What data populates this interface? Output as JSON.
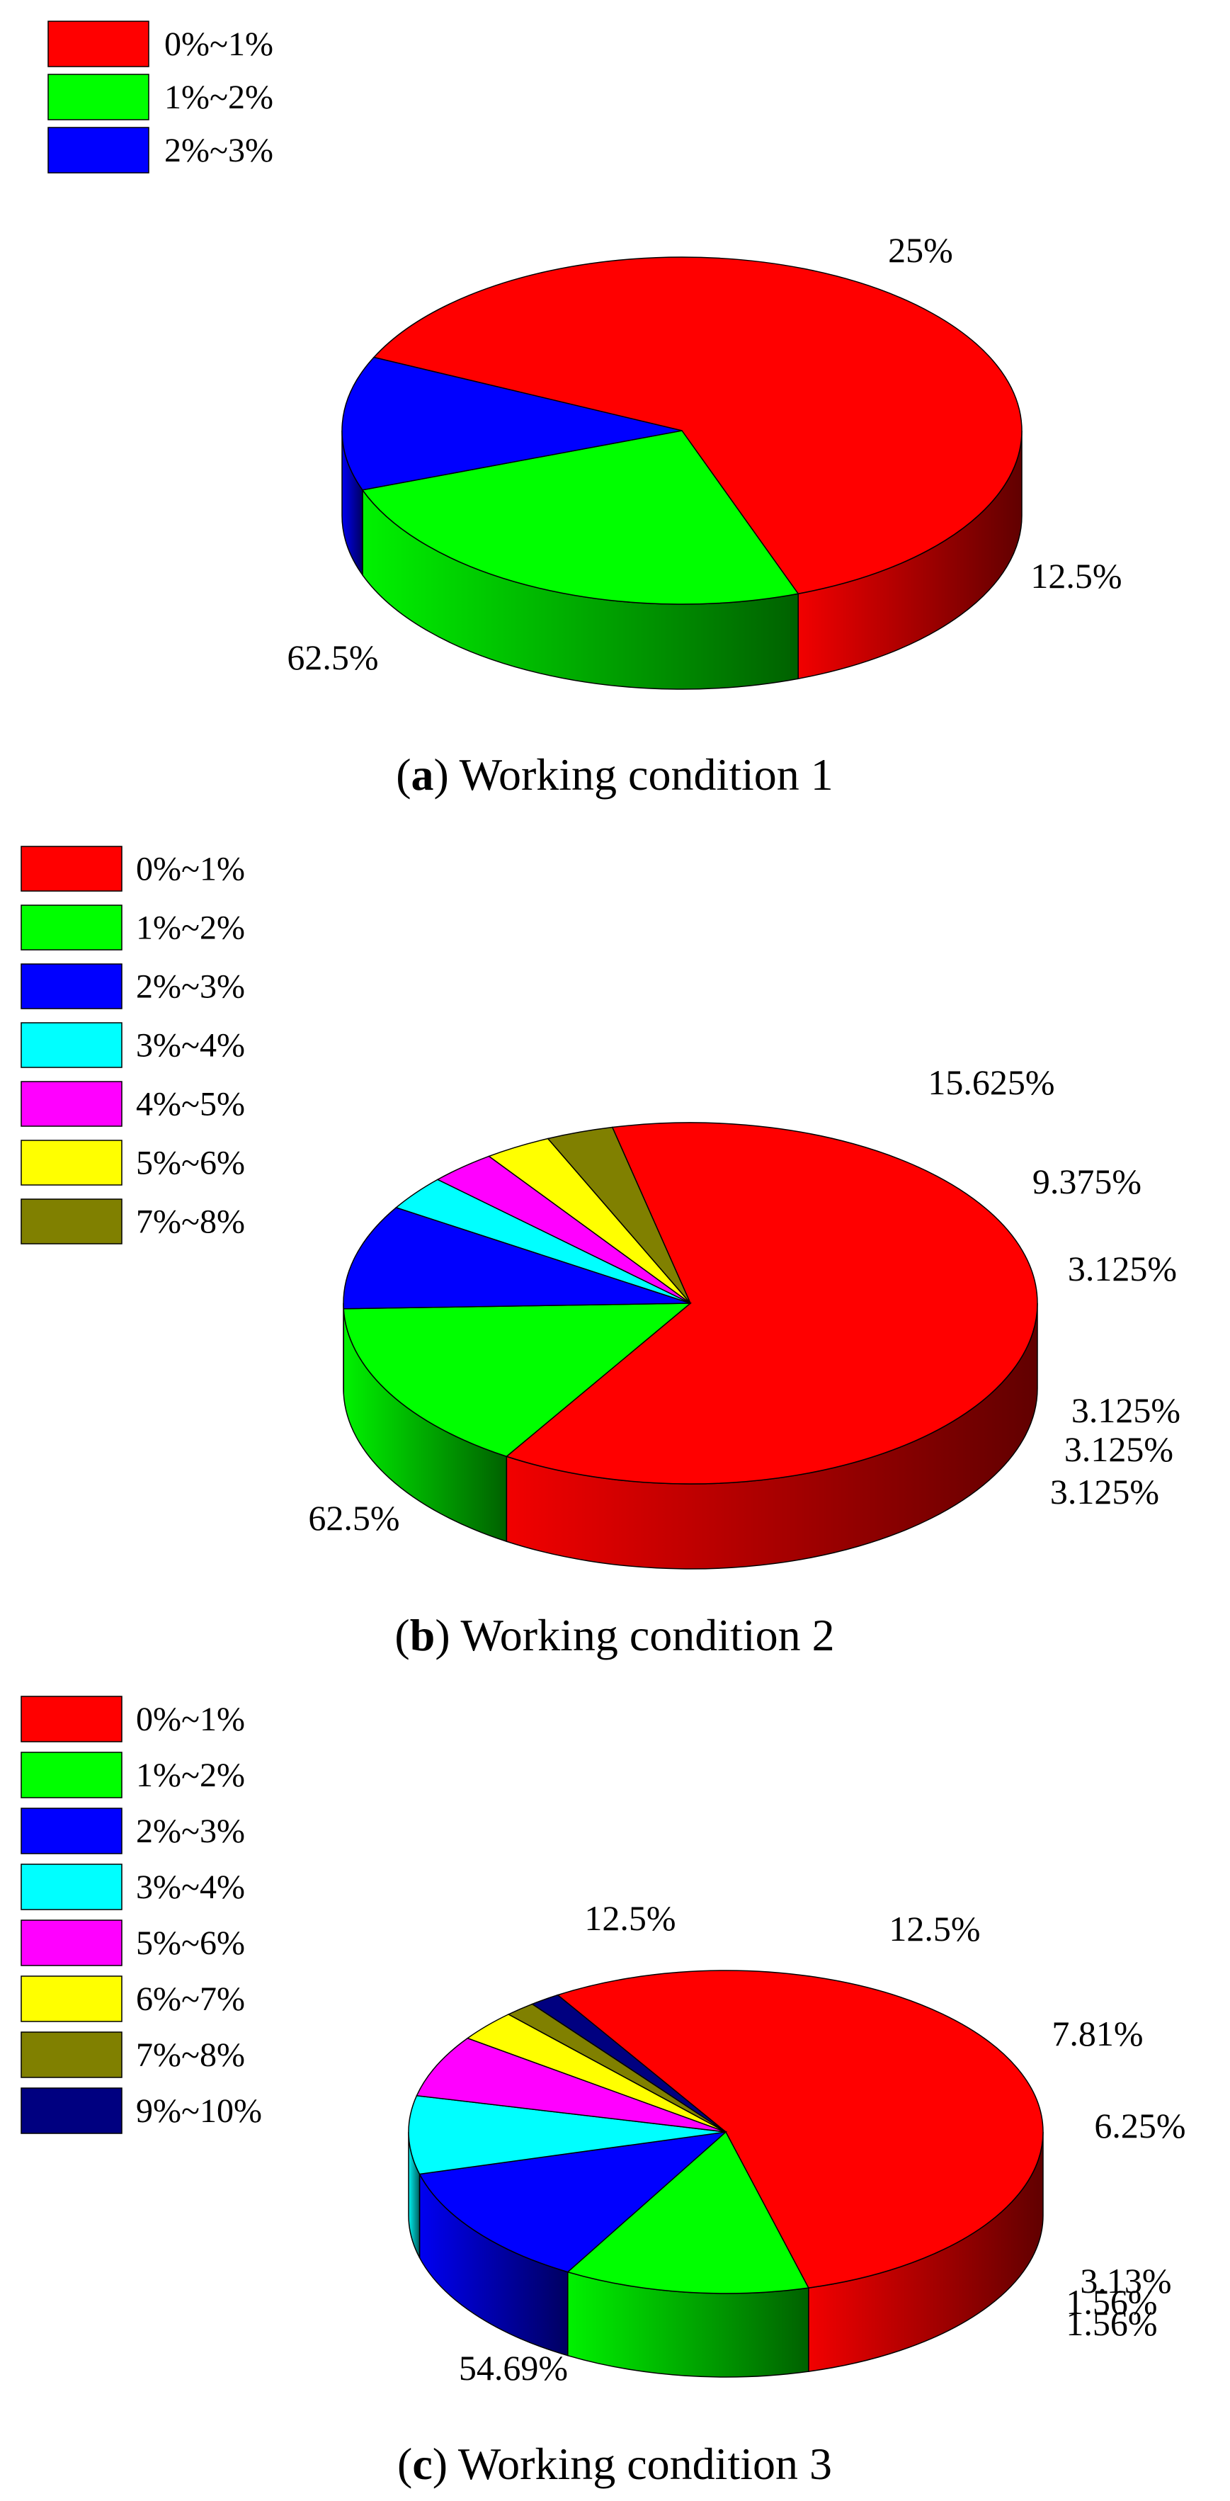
{
  "charts": [
    {
      "panel_letter": "a",
      "title": "Working condition 1",
      "chart_data": {
        "type": "pie",
        "style": "3d",
        "categories": [
          "0%~1%",
          "1%~2%",
          "2%~3%"
        ],
        "values": [
          62.5,
          25,
          12.5
        ],
        "value_labels": [
          "62.5%",
          "25%",
          "12.5%"
        ],
        "colors": [
          "#ff0000",
          "#00ff00",
          "#0000ff"
        ],
        "legend_placement": "top-left"
      }
    },
    {
      "panel_letter": "b",
      "title": "Working condition 2",
      "chart_data": {
        "type": "pie",
        "style": "3d",
        "categories": [
          "0%~1%",
          "1%~2%",
          "2%~3%",
          "3%~4%",
          "4%~5%",
          "5%~6%",
          "7%~8%"
        ],
        "values": [
          62.5,
          15.625,
          9.375,
          3.125,
          3.125,
          3.125,
          3.125
        ],
        "value_labels": [
          "62.5%",
          "15.625%",
          "9.375%",
          "3.125%",
          "3.125%",
          "3.125%",
          "3.125%"
        ],
        "colors": [
          "#ff0000",
          "#00ff00",
          "#0000ff",
          "#00ffff",
          "#ff00ff",
          "#ffff00",
          "#808000"
        ],
        "legend_placement": "top-left"
      }
    },
    {
      "panel_letter": "c",
      "title": "Working condition 3",
      "chart_data": {
        "type": "pie",
        "style": "3d",
        "categories": [
          "0%~1%",
          "1%~2%",
          "2%~3%",
          "3%~4%",
          "5%~6%",
          "6%~7%",
          "7%~8%",
          "9%~10%"
        ],
        "values": [
          54.69,
          12.5,
          12.5,
          7.81,
          6.25,
          3.13,
          1.56,
          1.56
        ],
        "value_labels": [
          "54.69%",
          "12.5%",
          "12.5%",
          "7.81%",
          "6.25%",
          "3.13%",
          "1.56%",
          "1.56%"
        ],
        "colors": [
          "#ff0000",
          "#00ff00",
          "#0000ff",
          "#00ffff",
          "#ff00ff",
          "#ffff00",
          "#808000",
          "#000080"
        ],
        "legend_placement": "top-left"
      }
    }
  ]
}
